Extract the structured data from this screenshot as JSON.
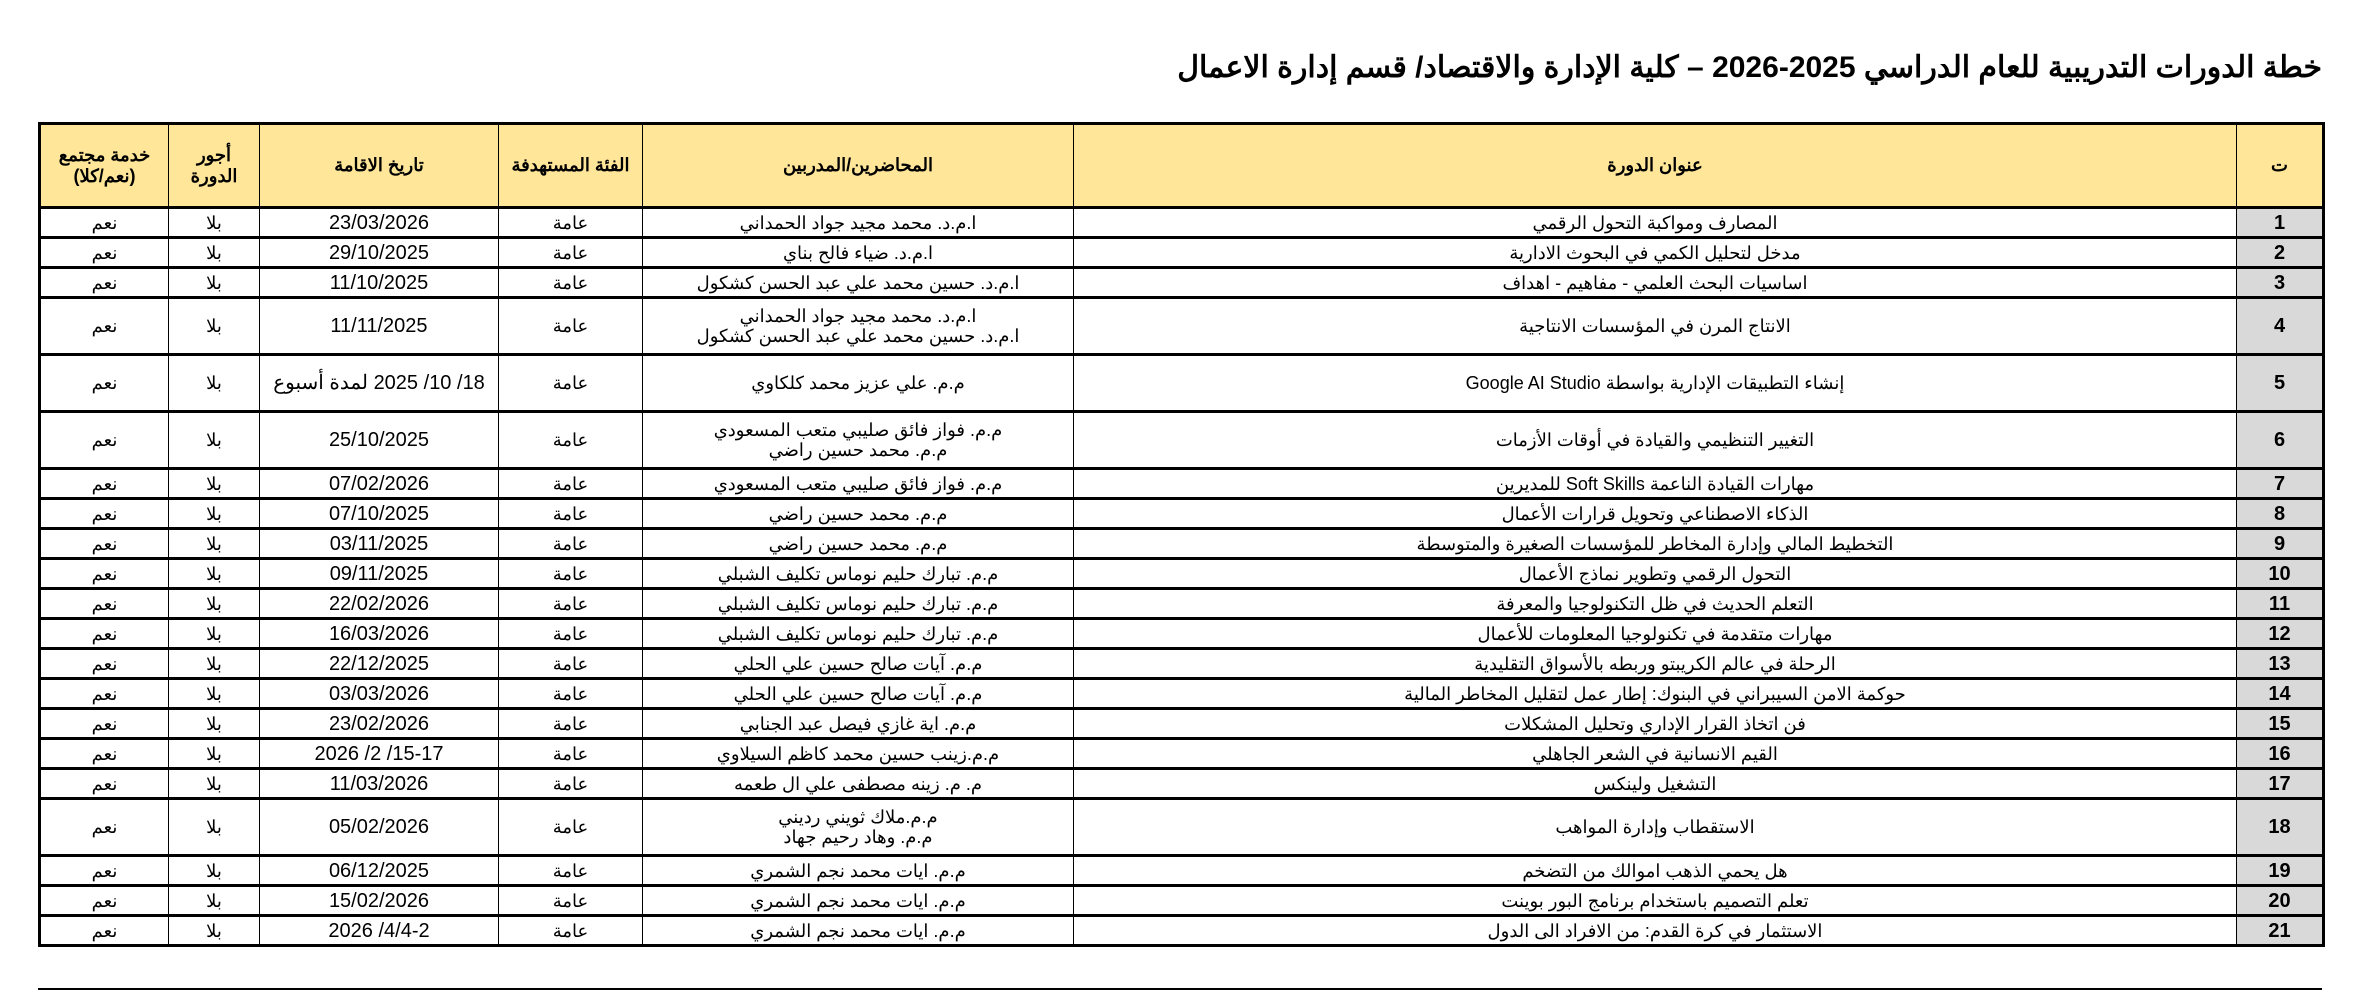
{
  "title": "خطة الدورات التدريبية للعام الدراسي 2025-2026 – كلية الإدارة والاقتصاد/ قسم إدارة الاعمال",
  "colors": {
    "header_bg": "#ffe699",
    "number_bg": "#d9d9d9"
  },
  "headers": {
    "num": "ت",
    "course": "عنوان الدورة",
    "trainers": "المحاضرين/المدربين",
    "audience": "الفئة المستهدفة",
    "date": "تاريخ الاقامة",
    "fee": "أجور الدورة",
    "community": "خدمة مجتمع (نعم/كلا)"
  },
  "rows": [
    {
      "num": "1",
      "course": "المصارف ومواكبة التحول الرقمي",
      "trainers": [
        "ا.م.د. محمد مجيد جواد الحمداني"
      ],
      "audience": "عامة",
      "date": "23/03/2026",
      "fee": "بلا",
      "community": "نعم"
    },
    {
      "num": "2",
      "course": "مدخل لتحليل الكمي في البحوث الادارية",
      "trainers": [
        "ا.م.د. ضياء فالح بناي"
      ],
      "audience": "عامة",
      "date": "29/10/2025",
      "fee": "بلا",
      "community": "نعم"
    },
    {
      "num": "3",
      "course": "اساسيات البحث العلمي - مفاهيم - اهداف",
      "trainers": [
        "ا.م.د. حسين محمد علي عبد الحسن كشكول"
      ],
      "audience": "عامة",
      "date": "11/10/2025",
      "fee": "بلا",
      "community": "نعم"
    },
    {
      "num": "4",
      "course": "الانتاج المرن في المؤسسات الانتاجية",
      "trainers": [
        "ا.م.د. محمد مجيد جواد الحمداني",
        "ا.م.د. حسين محمد علي عبد الحسن كشكول"
      ],
      "audience": "عامة",
      "date": "11/11/2025",
      "fee": "بلا",
      "community": "نعم"
    },
    {
      "num": "5",
      "course": "إنشاء التطبيقات الإدارية بواسطة Google AI Studio",
      "trainers": [
        "م.م. علي عزيز محمد كلكاوي"
      ],
      "audience": "عامة",
      "date": "18/ 10/ 2025 لمدة أسبوع",
      "fee": "بلا",
      "community": "نعم"
    },
    {
      "num": "6",
      "course": "التغيير التنظيمي والقيادة في أوقات الأزمات",
      "trainers": [
        "م.م. فواز فائق صليبي متعب المسعودي",
        "م.م. محمد حسين راضي"
      ],
      "audience": "عامة",
      "date": "25/10/2025",
      "fee": "بلا",
      "community": "نعم"
    },
    {
      "num": "7",
      "course": "مهارات القيادة الناعمة Soft Skills للمديرين",
      "trainers": [
        "م.م. فواز فائق صليبي متعب المسعودي"
      ],
      "audience": "عامة",
      "date": "07/02/2026",
      "fee": "بلا",
      "community": "نعم"
    },
    {
      "num": "8",
      "course": "الذكاء الاصطناعي وتحويل قرارات الأعمال",
      "trainers": [
        "م.م. محمد حسين راضي"
      ],
      "audience": "عامة",
      "date": "07/10/2025",
      "fee": "بلا",
      "community": "نعم"
    },
    {
      "num": "9",
      "course": "التخطيط المالي وإدارة المخاطر للمؤسسات الصغيرة والمتوسطة",
      "trainers": [
        "م.م. محمد حسين راضي"
      ],
      "audience": "عامة",
      "date": "03/11/2025",
      "fee": "بلا",
      "community": "نعم"
    },
    {
      "num": "10",
      "course": "التحول الرقمي وتطوير نماذج الأعمال",
      "trainers": [
        "م.م. تبارك حليم نوماس تكليف الشبلي"
      ],
      "audience": "عامة",
      "date": "09/11/2025",
      "fee": "بلا",
      "community": "نعم"
    },
    {
      "num": "11",
      "course": "التعلم الحديث في ظل التكنولوجيا والمعرفة",
      "trainers": [
        "م.م. تبارك حليم نوماس تكليف الشبلي"
      ],
      "audience": "عامة",
      "date": "22/02/2026",
      "fee": "بلا",
      "community": "نعم"
    },
    {
      "num": "12",
      "course": "مهارات متقدمة في تكنولوجيا المعلومات للأعمال",
      "trainers": [
        "م.م. تبارك حليم نوماس تكليف الشبلي"
      ],
      "audience": "عامة",
      "date": "16/03/2026",
      "fee": "بلا",
      "community": "نعم"
    },
    {
      "num": "13",
      "course": "الرحلة في عالم الكريبتو وربطه بالأسواق التقليدية",
      "trainers": [
        "م.م. آيات صالح حسين علي الحلي"
      ],
      "audience": "عامة",
      "date": "22/12/2025",
      "fee": "بلا",
      "community": "نعم"
    },
    {
      "num": "14",
      "course": "حوكمة الامن السيبراني في البنوك: إطار عمل لتقليل المخاطر المالية",
      "trainers": [
        "م.م. آيات صالح حسين علي الحلي"
      ],
      "audience": "عامة",
      "date": "03/03/2026",
      "fee": "بلا",
      "community": "نعم"
    },
    {
      "num": "15",
      "course": "فن اتخاذ القرار الإداري وتحليل المشكلات",
      "trainers": [
        "م.م. اية غازي فيصل عبد الجنابي"
      ],
      "audience": "عامة",
      "date": "23/02/2026",
      "fee": "بلا",
      "community": "نعم"
    },
    {
      "num": "16",
      "course": "القيم الانسانية في الشعر الجاهلي",
      "trainers": [
        "م.م.زينب حسين محمد كاظم السيلاوي"
      ],
      "audience": "عامة",
      "date": "15-17/ 2/ 2026",
      "fee": "بلا",
      "community": "نعم"
    },
    {
      "num": "17",
      "course": "التشغيل ولينكس",
      "trainers": [
        "م. م. زينه مصطفى علي ال طعمه"
      ],
      "audience": "عامة",
      "date": "11/03/2026",
      "fee": "بلا",
      "community": "نعم"
    },
    {
      "num": "18",
      "course": "الاستقطاب وإدارة المواهب",
      "trainers": [
        "م.م.ملاك ثويني رديني",
        "م.م. وهاد رحيم جهاد"
      ],
      "audience": "عامة",
      "date": "05/02/2026",
      "fee": "بلا",
      "community": "نعم"
    },
    {
      "num": "19",
      "course": "هل يحمي الذهب اموالك من التضخم",
      "trainers": [
        "م.م. ايات محمد نجم الشمري"
      ],
      "audience": "عامة",
      "date": "06/12/2025",
      "fee": "بلا",
      "community": "نعم"
    },
    {
      "num": "20",
      "course": "تعلم التصميم باستخدام برنامج البور بوينت",
      "trainers": [
        "م.م. ايات محمد نجم الشمري"
      ],
      "audience": "عامة",
      "date": "15/02/2026",
      "fee": "بلا",
      "community": "نعم"
    },
    {
      "num": "21",
      "course": "الاستثمار في كرة القدم: من الافراد الى الدول",
      "trainers": [
        "م.م. ايات محمد نجم الشمري"
      ],
      "audience": "عامة",
      "date": "4/4-2/ 2026",
      "fee": "بلا",
      "community": "نعم"
    }
  ]
}
